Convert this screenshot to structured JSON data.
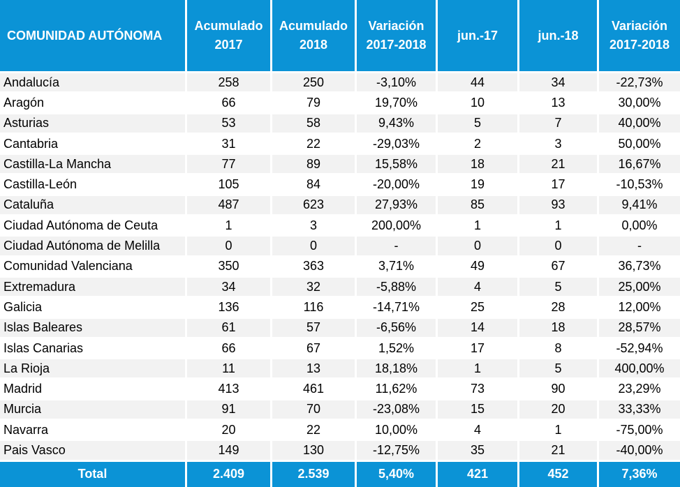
{
  "header": [
    [
      "COMUNIDAD AUTÓNOMA"
    ],
    [
      "Acumulado",
      "2017"
    ],
    [
      "Acumulado",
      "2018"
    ],
    [
      "Variación",
      "2017-2018"
    ],
    [
      "jun.-17"
    ],
    [
      "jun.-18"
    ],
    [
      "Variación",
      "2017-2018"
    ]
  ],
  "rows": [
    [
      "Andalucía",
      "258",
      "250",
      "-3,10%",
      "44",
      "34",
      "-22,73%"
    ],
    [
      "Aragón",
      "66",
      "79",
      "19,70%",
      "10",
      "13",
      "30,00%"
    ],
    [
      "Asturias",
      "53",
      "58",
      "9,43%",
      "5",
      "7",
      "40,00%"
    ],
    [
      "Cantabria",
      "31",
      "22",
      "-29,03%",
      "2",
      "3",
      "50,00%"
    ],
    [
      "Castilla-La Mancha",
      "77",
      "89",
      "15,58%",
      "18",
      "21",
      "16,67%"
    ],
    [
      "Castilla-León",
      "105",
      "84",
      "-20,00%",
      "19",
      "17",
      "-10,53%"
    ],
    [
      "Cataluña",
      "487",
      "623",
      "27,93%",
      "85",
      "93",
      "9,41%"
    ],
    [
      "Ciudad Autónoma de Ceuta",
      "1",
      "3",
      "200,00%",
      "1",
      "1",
      "0,00%"
    ],
    [
      "Ciudad Autónoma de Melilla",
      "0",
      "0",
      "-",
      "0",
      "0",
      "-"
    ],
    [
      "Comunidad Valenciana",
      "350",
      "363",
      "3,71%",
      "49",
      "67",
      "36,73%"
    ],
    [
      "Extremadura",
      "34",
      "32",
      "-5,88%",
      "4",
      "5",
      "25,00%"
    ],
    [
      "Galicia",
      "136",
      "116",
      "-14,71%",
      "25",
      "28",
      "12,00%"
    ],
    [
      "Islas Baleares",
      "61",
      "57",
      "-6,56%",
      "14",
      "18",
      "28,57%"
    ],
    [
      "Islas Canarias",
      "66",
      "67",
      "1,52%",
      "17",
      "8",
      "-52,94%"
    ],
    [
      "La Rioja",
      "11",
      "13",
      "18,18%",
      "1",
      "5",
      "400,00%"
    ],
    [
      "Madrid",
      "413",
      "461",
      "11,62%",
      "73",
      "90",
      "23,29%"
    ],
    [
      "Murcia",
      "91",
      "70",
      "-23,08%",
      "15",
      "20",
      "33,33%"
    ],
    [
      "Navarra",
      "20",
      "22",
      "10,00%",
      "4",
      "1",
      "-75,00%"
    ],
    [
      "Pais Vasco",
      "149",
      "130",
      "-12,75%",
      "35",
      "21",
      "-40,00%"
    ]
  ],
  "total": [
    "Total",
    "2.409",
    "2.539",
    "5,40%",
    "421",
    "452",
    "7,36%"
  ]
}
